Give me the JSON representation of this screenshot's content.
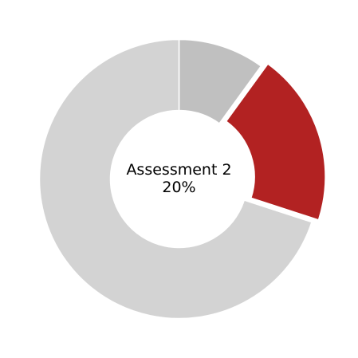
{
  "chart_data": {
    "type": "pie",
    "style": "donut",
    "slices": [
      {
        "name": "",
        "value": 10,
        "color": "#c0c0c0",
        "highlighted": false
      },
      {
        "name": "",
        "value": 20,
        "color": "#b22222",
        "highlighted": true
      },
      {
        "name": "",
        "value": 70,
        "color": "#d3d3d3",
        "highlighted": false
      }
    ],
    "center_label": {
      "title": "Assessment 2",
      "value": "20%"
    }
  }
}
